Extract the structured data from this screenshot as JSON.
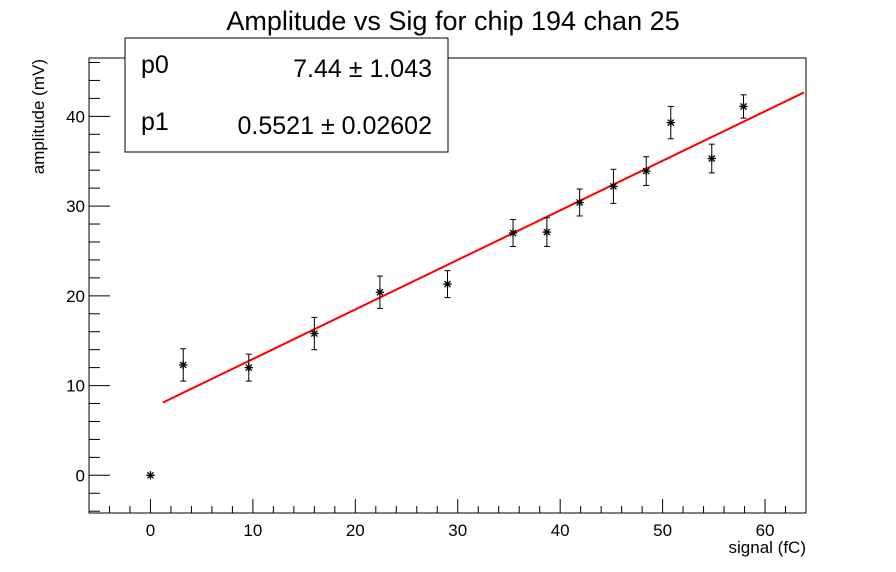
{
  "chart_data": {
    "type": "scatter",
    "title": "Amplitude vs Sig for chip 194 chan 25",
    "xlabel": "signal (fC)",
    "ylabel": "amplitude (mV)",
    "xlim": [
      -6,
      64
    ],
    "ylim": [
      -4.2,
      46.5
    ],
    "xticks": [
      0,
      10,
      20,
      30,
      40,
      50,
      60
    ],
    "yticks": [
      0,
      10,
      20,
      30,
      40
    ],
    "grid": false,
    "series": [
      {
        "x": [
          0.0,
          3.2,
          9.6,
          16.0,
          22.4,
          29.0,
          35.4,
          38.7,
          41.9,
          45.2,
          48.4,
          50.8,
          54.8,
          57.9
        ],
        "y": [
          0.0,
          12.3,
          12.0,
          15.8,
          20.4,
          21.3,
          27.0,
          27.1,
          30.4,
          32.2,
          33.9,
          39.3,
          35.3,
          41.1
        ],
        "yerr": [
          0.0,
          1.8,
          1.5,
          1.8,
          1.8,
          1.5,
          1.5,
          1.6,
          1.5,
          1.9,
          1.6,
          1.8,
          1.6,
          1.3
        ],
        "color": "#000000"
      }
    ],
    "fit": {
      "x_range": [
        1.2,
        63.8
      ],
      "color": "#ff0000"
    },
    "stats": [
      {
        "name": "p0",
        "value": "7.44",
        "pm": "±",
        "error": "1.043"
      },
      {
        "name": "p1",
        "value": "0.5521",
        "pm": "±",
        "error": "0.02602"
      }
    ]
  }
}
